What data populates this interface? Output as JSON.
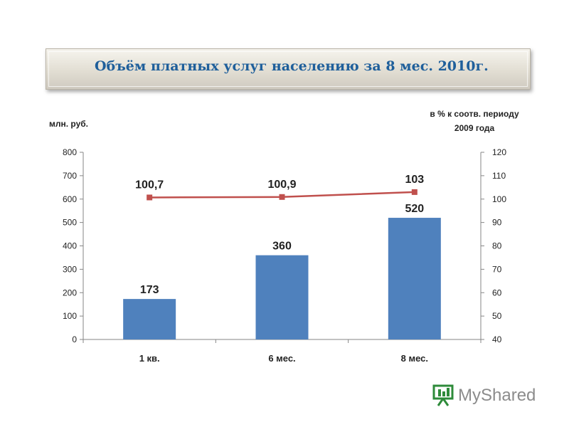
{
  "title": "Объём платных услуг населению за 8 мес. 2010г.",
  "ylabel_left": "млн. руб.",
  "ylabel_right_line1": "в % к соотв. периоду",
  "ylabel_right_line2": "2009 года",
  "logo": {
    "text": "MyShared",
    "icon": "presentation-board-icon"
  },
  "chart_data": {
    "type": "bar",
    "categories": [
      "1 кв.",
      "6 мес.",
      "8 мес."
    ],
    "series": [
      {
        "kind": "bar",
        "axis": "left",
        "values": [
          173,
          360,
          520
        ],
        "labels": [
          "173",
          "360",
          "520"
        ],
        "color": "#4f81bd"
      },
      {
        "kind": "line",
        "axis": "right",
        "values": [
          100.7,
          100.9,
          103
        ],
        "labels": [
          "100,7",
          "100,9",
          "103"
        ],
        "color": "#c0504d"
      }
    ],
    "ylim_left": [
      0,
      800
    ],
    "yticks_left": [
      0,
      100,
      200,
      300,
      400,
      500,
      600,
      700,
      800
    ],
    "ylim_right": [
      40,
      120
    ],
    "yticks_right": [
      40,
      50,
      60,
      70,
      80,
      90,
      100,
      110,
      120
    ],
    "grid": false,
    "legend": "none"
  }
}
